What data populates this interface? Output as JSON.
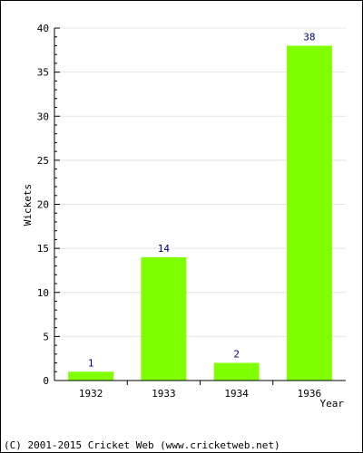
{
  "chart_data": {
    "type": "bar",
    "categories": [
      "1932",
      "1933",
      "1934",
      "1936"
    ],
    "values": [
      1,
      14,
      2,
      38
    ],
    "data_labels": [
      "1",
      "14",
      "2",
      "38"
    ],
    "xlabel": "Year",
    "ylabel": "Wickets",
    "ylim": [
      0,
      40
    ],
    "yticks": [
      0,
      5,
      10,
      15,
      20,
      25,
      30,
      35,
      40
    ],
    "grid": true,
    "bar_color": "#80ff00",
    "data_label_color": "#000080"
  },
  "footer": {
    "copyright": "(C) 2001-2015 Cricket Web (www.cricketweb.net)"
  }
}
